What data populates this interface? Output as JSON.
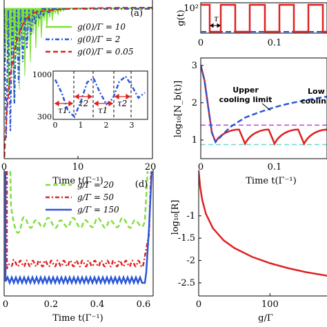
{
  "chart_data": [
    {
      "panel": "a",
      "type": "line",
      "panel_label": "(a)",
      "xlabel": "Time t(Γ⁻¹)",
      "ylabel": "",
      "xlim": [
        0,
        20
      ],
      "x_ticks": [
        "0",
        "10",
        "20"
      ],
      "series": [
        {
          "name": "g(0)/Γ = 10",
          "color": "#7fe03a",
          "style": "solid"
        },
        {
          "name": "g(0)/Γ = 2",
          "color": "#2a55d6",
          "style": "dashdot"
        },
        {
          "name": "g(0)/Γ = 0.05",
          "color": "#e02020",
          "style": "dashed"
        }
      ],
      "inset": {
        "y_ticks": [
          "1000",
          "300"
        ],
        "x_ticks": [
          "0",
          "1",
          "2",
          "3"
        ],
        "xlim": [
          0,
          3.5
        ],
        "ylim": [
          300,
          1000
        ],
        "annotations": [
          "τ1",
          "τ2",
          "τ1",
          "τ2"
        ],
        "x": [
          0,
          0.25,
          0.5,
          0.75,
          1.0,
          1.25,
          1.5,
          1.75,
          2.0,
          2.25,
          2.5,
          2.75,
          3.0,
          3.25,
          3.5
        ],
        "y": [
          900,
          700,
          420,
          330,
          560,
          860,
          920,
          700,
          520,
          610,
          870,
          950,
          800,
          620,
          700
        ]
      }
    },
    {
      "panel": "b-top",
      "type": "line",
      "ylabel": "g(t)",
      "y_tick_top": "10²",
      "x_ticks": [
        "0",
        "0.1"
      ],
      "xlim": [
        0,
        0.2
      ],
      "annotation": "τ",
      "series": [
        {
          "name": "red",
          "color": "#e02020",
          "style": "solid",
          "x": [
            0,
            0.02,
            0.04,
            0.06,
            0.08,
            0.1,
            0.12,
            0.14,
            0.16,
            0.18
          ],
          "y": [
            1,
            0,
            1,
            0,
            1,
            0,
            1,
            0,
            1,
            0
          ]
        },
        {
          "name": "blue",
          "color": "#2a55d6",
          "style": "dashed"
        }
      ]
    },
    {
      "panel": "b",
      "type": "line",
      "ylabel": "log₁₀[N_b(t)]",
      "xlabel": "Time t(Γ⁻¹)",
      "xlim": [
        0,
        0.2
      ],
      "ylim": [
        0.5,
        3.2
      ],
      "x_ticks": [
        "0",
        "0.1"
      ],
      "y_ticks": [
        {
          "v": 3,
          "label": "3"
        },
        {
          "v": 2,
          "label": "2"
        },
        {
          "v": 1,
          "label": "1"
        }
      ],
      "annotations": [
        "Upper",
        "cooling limit",
        "Low",
        "cooling"
      ],
      "series": [
        {
          "name": "blue",
          "color": "#2a55d6",
          "style": "dashed",
          "x": [
            0,
            0.005,
            0.01,
            0.015,
            0.02,
            0.04,
            0.06,
            0.08,
            0.1,
            0.12,
            0.14,
            0.16,
            0.18,
            0.2
          ],
          "y": [
            3.0,
            2.6,
            1.9,
            1.2,
            0.95,
            1.35,
            1.6,
            1.75,
            1.88,
            1.98,
            2.06,
            2.13,
            2.19,
            2.25
          ]
        },
        {
          "name": "red",
          "color": "#e02020",
          "style": "solid",
          "x": [
            0,
            0.005,
            0.01,
            0.015,
            0.02
          ],
          "y": [
            3.0,
            2.6,
            1.9,
            1.2,
            0.95
          ]
        },
        {
          "name": "upper-limit",
          "color": "#b44bd6",
          "style": "dashed",
          "y_const": 1.4
        },
        {
          "name": "lower-limit",
          "color": "#6fd6c8",
          "style": "dashed",
          "y_const": 0.88
        }
      ]
    },
    {
      "panel": "d",
      "type": "line",
      "panel_label": "(d)",
      "xlabel": "Time t(Γ⁻¹)",
      "xlim": [
        0,
        0.65
      ],
      "x_ticks": [
        "0",
        "0.2",
        "0.4",
        "0.6"
      ],
      "series": [
        {
          "name": "g/Γ = 20",
          "color": "#7fe03a",
          "style": "dashed"
        },
        {
          "name": "g/Γ = 50",
          "color": "#e02020",
          "style": "dashdot"
        },
        {
          "name": "g/Γ = 150",
          "color": "#2a55d6",
          "style": "solid"
        }
      ]
    },
    {
      "panel": "e",
      "type": "line",
      "ylabel": "log₁₀[R]",
      "xlabel": "g/Γ",
      "xlim": [
        0,
        180
      ],
      "ylim": [
        -2.5,
        0
      ],
      "x_ticks": [
        {
          "v": 0,
          "label": "0"
        },
        {
          "v": 100,
          "label": "100"
        }
      ],
      "y_ticks": [
        {
          "v": -1,
          "label": "-1"
        },
        {
          "v": -1.5,
          "label": "-1.5"
        },
        {
          "v": -2,
          "label": "-2"
        },
        {
          "v": -2.5,
          "label": "-2.5"
        }
      ],
      "series": [
        {
          "name": "R",
          "color": "#e02020",
          "style": "solid",
          "x": [
            0,
            2,
            5,
            10,
            20,
            35,
            50,
            75,
            100,
            125,
            150,
            180
          ],
          "y": [
            0,
            -0.35,
            -0.65,
            -0.95,
            -1.28,
            -1.55,
            -1.72,
            -1.92,
            -2.06,
            -2.17,
            -2.26,
            -2.34
          ]
        }
      ]
    }
  ]
}
